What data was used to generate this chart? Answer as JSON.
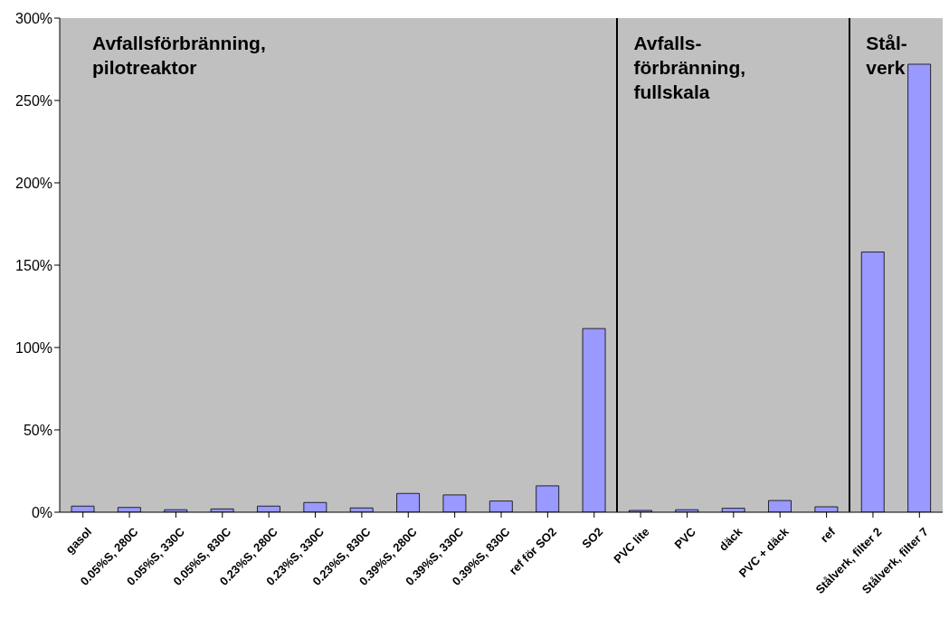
{
  "chart_data": {
    "type": "bar",
    "categories": [
      "gasol",
      "0.05%S, 280C",
      "0.05%S, 330C",
      "0.05%S, 830C",
      "0.23%S, 280C",
      "0.23%S, 330C",
      "0.23%S, 830C",
      "0.39%S, 280C",
      "0.39%S, 330C",
      "0.39%S, 830C",
      "ref för SO2",
      "SO2",
      "PVC lite",
      "PVC",
      "däck",
      "PVC + däck",
      "ref",
      "Stålverk, filter 2",
      "Stålverk, filter 7"
    ],
    "values": [
      3.7,
      2.9,
      1.5,
      2,
      3.7,
      5.9,
      2.6,
      11.4,
      10.5,
      6.8,
      16,
      111.5,
      1.1,
      1.5,
      2.4,
      7.1,
      3.3,
      158,
      272
    ],
    "color": "#9999ff",
    "ylim": [
      0,
      300
    ],
    "yticks": [
      {
        "value": 0,
        "label": "0%"
      },
      {
        "value": 50,
        "label": "50%"
      },
      {
        "value": 100,
        "label": "100%"
      },
      {
        "value": 150,
        "label": "150%"
      },
      {
        "value": 200,
        "label": "200%"
      },
      {
        "value": 250,
        "label": "250%"
      },
      {
        "value": 300,
        "label": "300%"
      }
    ],
    "bands": [
      {
        "axis": "x",
        "from": "gasol",
        "to": "SO2",
        "label": "Avfallsförbränning, pilotreaktor",
        "color": "#c0c0c0"
      },
      {
        "axis": "x",
        "from": "PVC lite",
        "to": "ref",
        "label": "Avfalls-förbränning, fullskala",
        "color": "#c0c0c0"
      },
      {
        "axis": "x",
        "from": "Stålverk, filter 2",
        "to": "Stålverk, filter 7",
        "label": "Stål-verk",
        "color": "#c0c0c0"
      }
    ],
    "grid": false,
    "legend": false
  }
}
